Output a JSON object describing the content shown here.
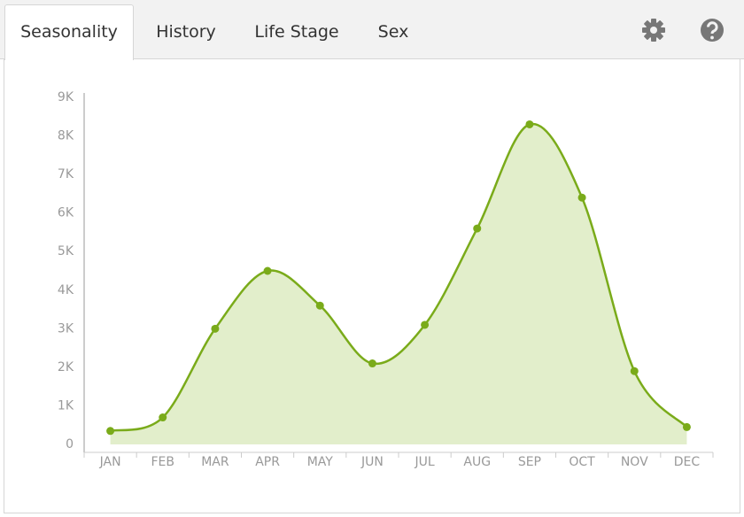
{
  "tabs": [
    "Seasonality",
    "History",
    "Life Stage",
    "Sex"
  ],
  "chart_data": {
    "type": "area",
    "categories": [
      "JAN",
      "FEB",
      "MAR",
      "APR",
      "MAY",
      "JUN",
      "JUL",
      "AUG",
      "SEP",
      "OCT",
      "NOV",
      "DEC"
    ],
    "values": [
      350,
      700,
      3000,
      4500,
      3600,
      2100,
      3100,
      5600,
      8300,
      6400,
      1900,
      450
    ],
    "color": "#7aab1a",
    "fill": "#e2eecb",
    "ylim": [
      0,
      9000
    ],
    "yticks": [
      0,
      {
        "value": 1000,
        "label": "1K"
      },
      {
        "value": 2000,
        "label": "2K"
      },
      {
        "value": 3000,
        "label": "3K"
      },
      {
        "value": 4000,
        "label": "4K"
      },
      {
        "value": 5000,
        "label": "5K"
      },
      {
        "value": 6000,
        "label": "6K"
      },
      {
        "value": 7000,
        "label": "7K"
      },
      {
        "value": 8000,
        "label": "8K"
      },
      {
        "value": 9000,
        "label": "9K"
      }
    ],
    "grid": false
  }
}
